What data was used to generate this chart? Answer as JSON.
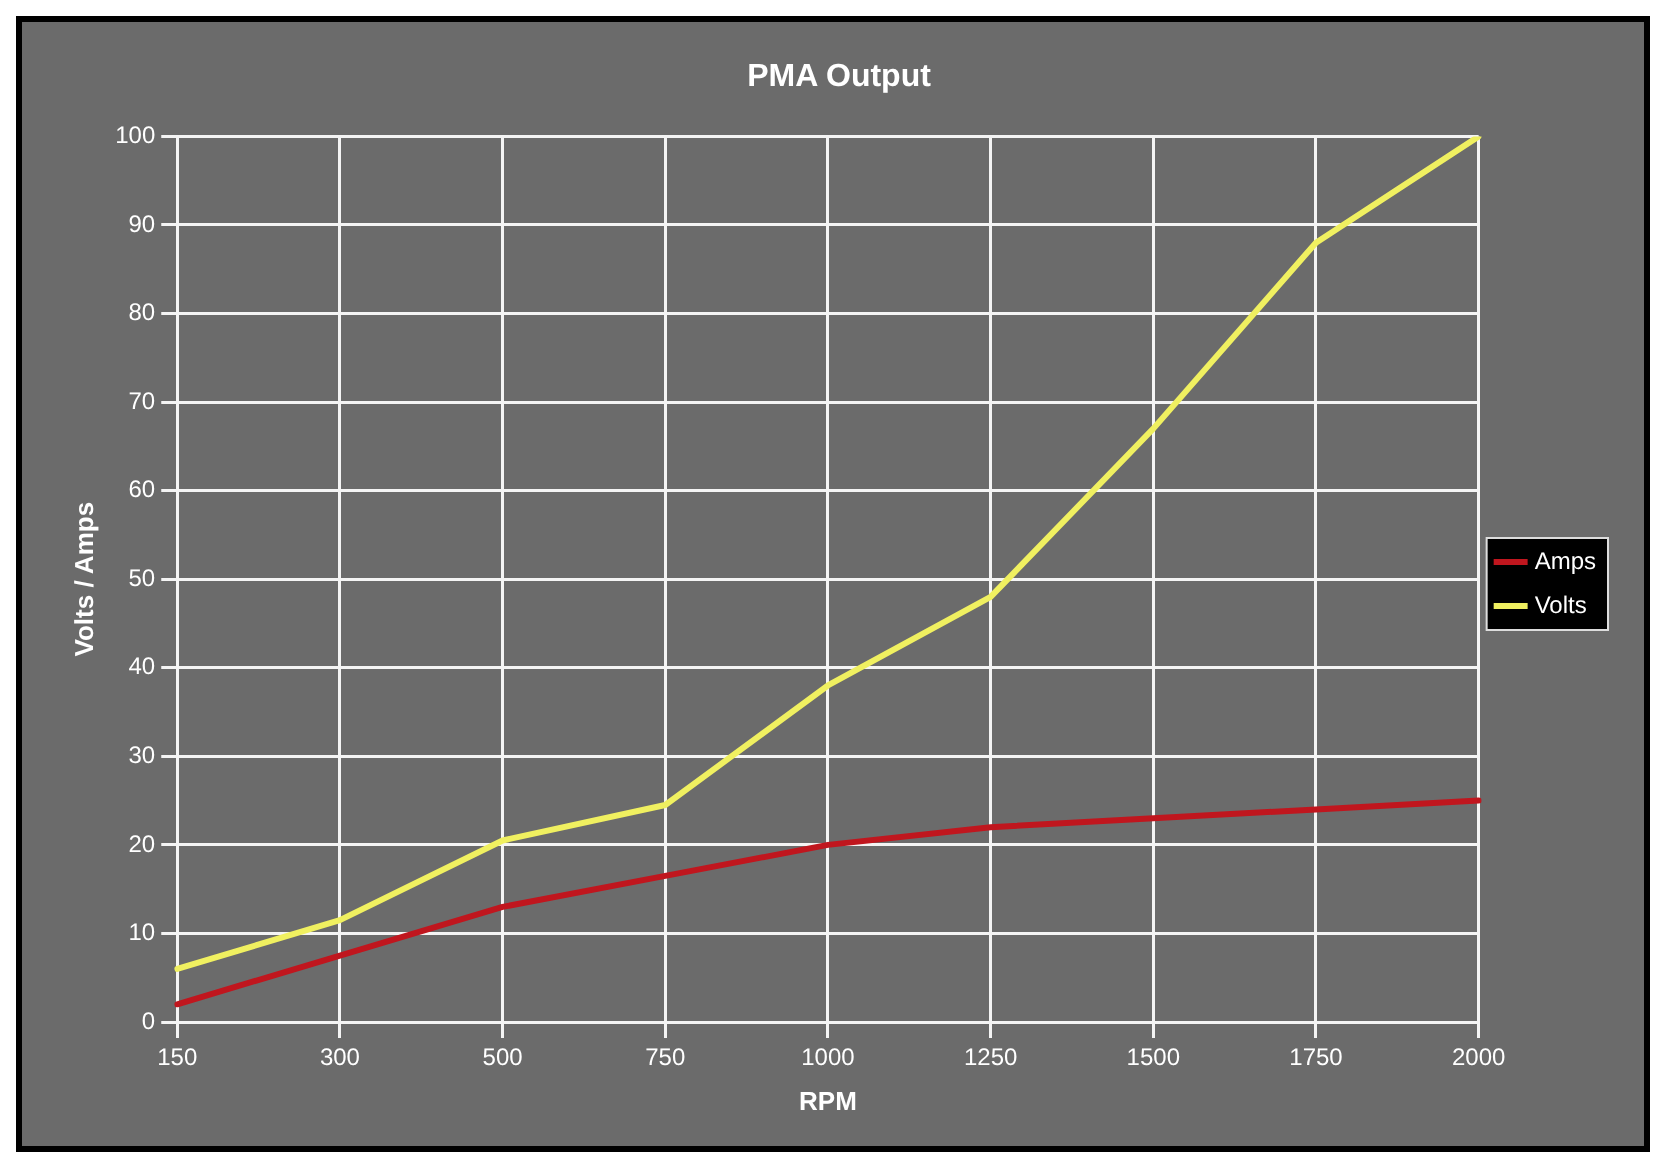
{
  "chart_data": {
    "type": "line",
    "title": "PMA Output",
    "xlabel": "RPM",
    "ylabel": "Volts / Amps",
    "categories": [
      "150",
      "300",
      "500",
      "750",
      "1000",
      "1250",
      "1500",
      "1750",
      "2000"
    ],
    "series": [
      {
        "name": "Amps",
        "color": "#c0161e",
        "values": [
          2,
          7.5,
          13,
          16.5,
          20,
          22,
          23,
          24,
          25
        ]
      },
      {
        "name": "Volts",
        "color": "#f0f060",
        "values": [
          6,
          11.5,
          20.5,
          24.5,
          38,
          48,
          67,
          88,
          100
        ]
      }
    ],
    "ylim": [
      0,
      100
    ],
    "yticks": [
      0,
      10,
      20,
      30,
      40,
      50,
      60,
      70,
      80,
      90,
      100
    ],
    "grid": true,
    "legend": "right",
    "marker": "none",
    "line_style": "solid"
  }
}
